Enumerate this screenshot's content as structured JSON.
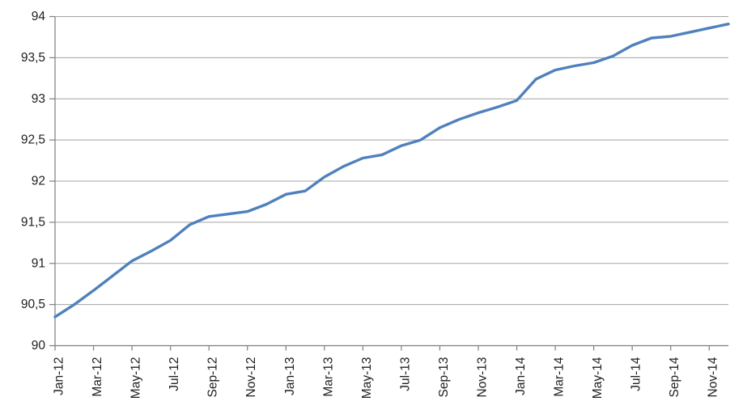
{
  "chart_data": {
    "type": "line",
    "title": "",
    "legend": "none",
    "grid": true,
    "categories": [
      "Jan-12",
      "Feb-12",
      "Mar-12",
      "Apr-12",
      "May-12",
      "Jun-12",
      "Jul-12",
      "Aug-12",
      "Sep-12",
      "Oct-12",
      "Nov-12",
      "Dec-12",
      "Jan-13",
      "Feb-13",
      "Mar-13",
      "Apr-13",
      "May-13",
      "Jun-13",
      "Jul-13",
      "Aug-13",
      "Sep-13",
      "Oct-13",
      "Nov-13",
      "Dec-13",
      "Jan-14",
      "Feb-14",
      "Mar-14",
      "Apr-14",
      "May-14",
      "Jun-14",
      "Jul-14",
      "Aug-14",
      "Sep-14",
      "Oct-14",
      "Nov-14",
      "Dec-14"
    ],
    "values": [
      90.35,
      90.5,
      90.67,
      90.85,
      91.03,
      91.15,
      91.28,
      91.47,
      91.57,
      91.6,
      91.63,
      91.72,
      91.84,
      91.88,
      92.05,
      92.18,
      92.28,
      92.32,
      92.43,
      92.5,
      92.65,
      92.75,
      92.83,
      92.9,
      92.98,
      93.24,
      93.35,
      93.4,
      93.44,
      93.52,
      93.65,
      93.74,
      93.76,
      93.81,
      93.86,
      93.91
    ],
    "x_tick_labels": [
      "Jan-12",
      "Mar-12",
      "May-12",
      "Jul-12",
      "Sep-12",
      "Nov-12",
      "Jan-13",
      "Mar-13",
      "May-13",
      "Jul-13",
      "Sep-13",
      "Nov-13",
      "Jan-14",
      "Mar-14",
      "May-14",
      "Jul-14",
      "Sep-14",
      "Nov-14"
    ],
    "x_tick_every": 2,
    "xlabel": "",
    "ylabel": "",
    "ylim": [
      90,
      94
    ],
    "ytick_step": 0.5,
    "y_tick_labels": [
      "94",
      "93,5",
      "93",
      "92,5",
      "92",
      "91,5",
      "91",
      "90,5",
      "90"
    ],
    "decimal_separator": ",",
    "colors": {
      "line": "#4F81BD",
      "grid": "#A3A3A3",
      "axis": "#7F7F7F",
      "label": "#202020",
      "background": "#FFFFFF"
    },
    "line_width": 3.4,
    "font_size_px": 15.5
  }
}
